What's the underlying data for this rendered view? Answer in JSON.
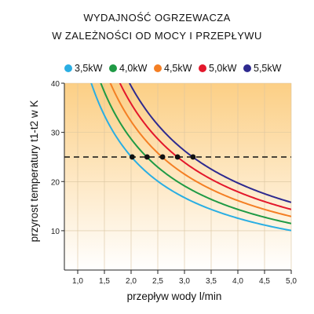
{
  "chart_data": {
    "type": "line",
    "title_lines": [
      "WYDAJNOŚĆ OGRZEWACZA",
      "W ZALEŻNOŚCI OD MOCY I PRZEPŁYWU"
    ],
    "xlabel": "przepływ wody l/min",
    "ylabel": "przyrost temperatury t1-t2 w K",
    "xlim": [
      0.75,
      5.0
    ],
    "ylim": [
      2,
      40
    ],
    "x_ticks": [
      "1,0",
      "1,5",
      "2,0",
      "2,5",
      "3,0",
      "3,5",
      "4,0",
      "4,5",
      "5,0"
    ],
    "y_ticks": [
      "10",
      "20",
      "30",
      "40"
    ],
    "x_tick_values": [
      1.0,
      1.5,
      2.0,
      2.5,
      3.0,
      3.5,
      4.0,
      4.5,
      5.0
    ],
    "y_tick_values": [
      10,
      20,
      30,
      40
    ],
    "series": [
      {
        "name": "3,5kW",
        "color": "#2aaee3",
        "power_kw": 3.5,
        "x_start": 1.25,
        "x_end": 5.0,
        "marker_x": 2.02
      },
      {
        "name": "4,0kW",
        "color": "#1f9a45",
        "power_kw": 4.0,
        "x_start": 1.43,
        "x_end": 5.0,
        "marker_x": 2.3
      },
      {
        "name": "4,5kW",
        "color": "#f47f24",
        "power_kw": 4.5,
        "x_start": 1.61,
        "x_end": 5.0,
        "marker_x": 2.59
      },
      {
        "name": "5,0kW",
        "color": "#e3172b",
        "power_kw": 5.0,
        "x_start": 1.79,
        "x_end": 5.0,
        "marker_x": 2.87
      },
      {
        "name": "5,5kW",
        "color": "#2e2a8f",
        "power_kw": 5.5,
        "x_start": 1.97,
        "x_end": 5.0,
        "marker_x": 3.16
      }
    ],
    "reference_line": {
      "y": 25,
      "style": "dashed",
      "color": "#111111"
    },
    "background_gradient": {
      "top": "#fccf85",
      "bottom": "#ffffff"
    }
  }
}
